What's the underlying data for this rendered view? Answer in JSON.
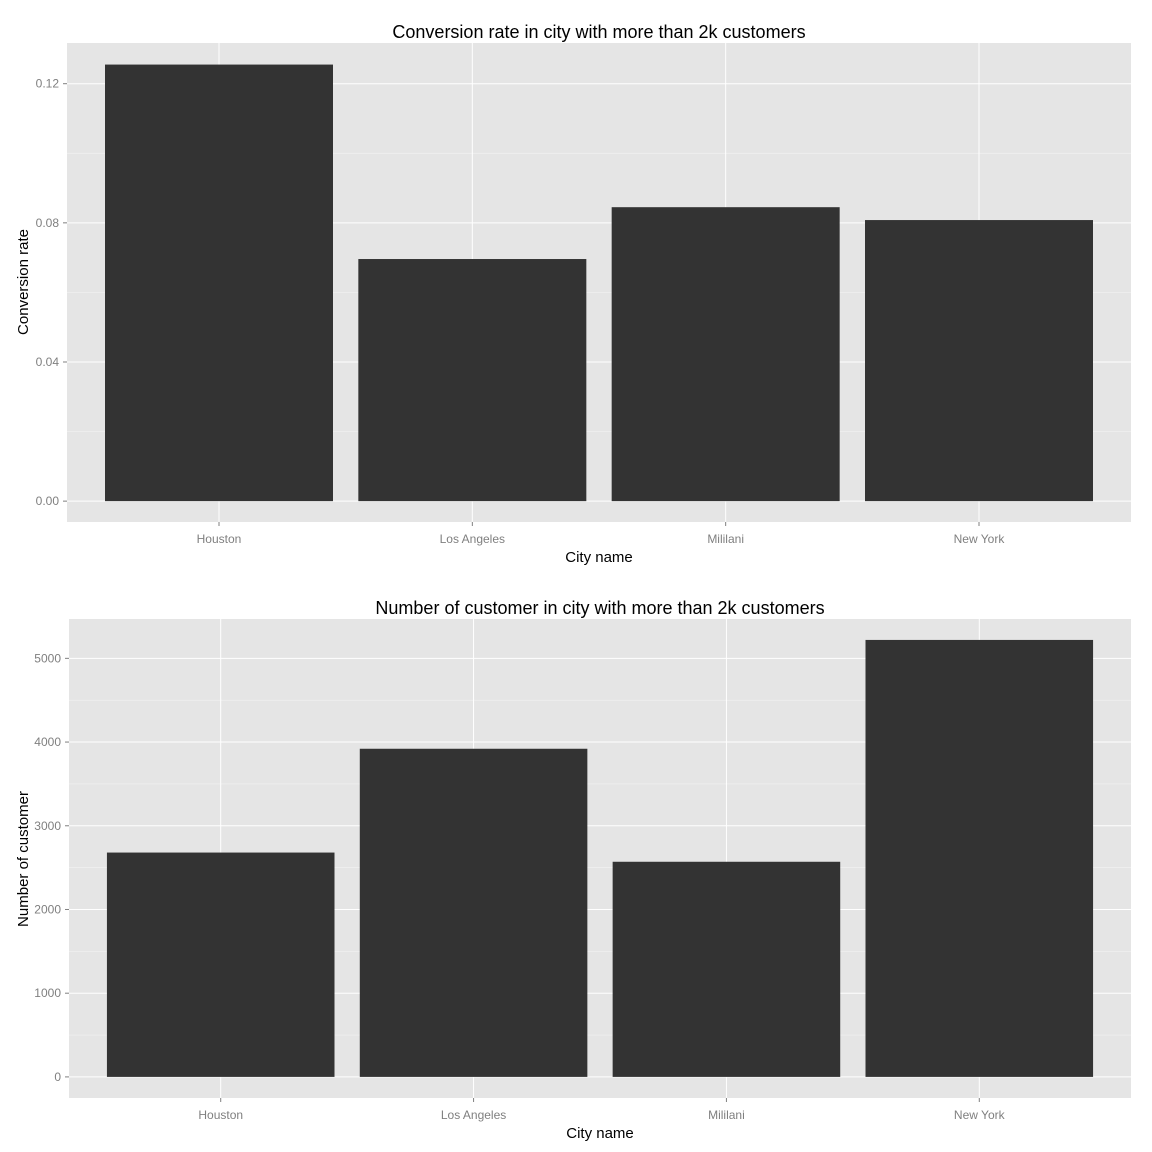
{
  "chart_data": [
    {
      "type": "bar",
      "title": "Conversion rate in city with more than 2k customers",
      "xlabel": "City name",
      "ylabel": "Conversion rate",
      "categories": [
        "Houston",
        "Los Angeles",
        "Mililani",
        "New York"
      ],
      "values": [
        0.1255,
        0.0696,
        0.0845,
        0.0808
      ],
      "ylim": [
        -0.006,
        0.1317
      ],
      "yticks": [
        0.0,
        0.04,
        0.08,
        0.12
      ],
      "ytick_labels": [
        "0.00",
        "0.04",
        "0.08",
        "0.12"
      ],
      "grid": true,
      "panel_color": "#e5e5e5",
      "grid_color": "#ffffff",
      "bar_color": "#333333"
    },
    {
      "type": "bar",
      "title": "Number of customer in city with more than 2k customers",
      "xlabel": "City name",
      "ylabel": "Number of customer",
      "categories": [
        "Houston",
        "Los Angeles",
        "Mililani",
        "New York"
      ],
      "values": [
        2680,
        3920,
        2570,
        5220
      ],
      "ylim": [
        -252,
        5470
      ],
      "yticks": [
        0,
        1000,
        2000,
        3000,
        4000,
        5000
      ],
      "ytick_labels": [
        "0",
        "1000",
        "2000",
        "3000",
        "4000",
        "5000"
      ],
      "grid": true,
      "panel_color": "#e5e5e5",
      "grid_color": "#ffffff",
      "bar_color": "#333333"
    }
  ]
}
